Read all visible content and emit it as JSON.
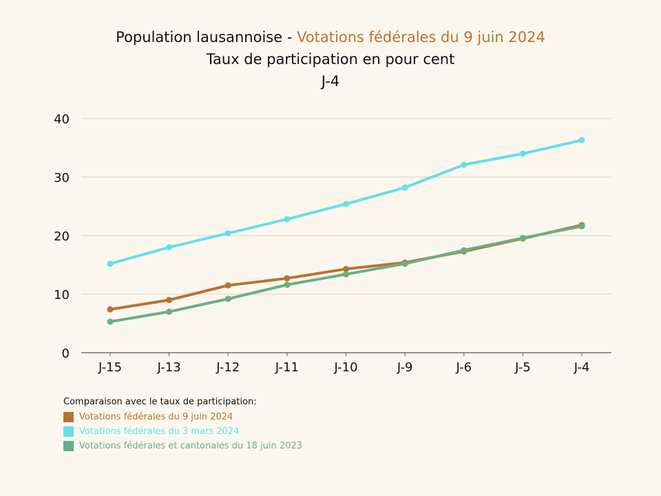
{
  "header": {
    "title_prefix": "Population lausannoise - ",
    "title_highlight": "Votations fédérales du 9 juin 2024",
    "subtitle": "Taux de participation en pour cent",
    "subtitle2": "J-4"
  },
  "legend": {
    "title": "Comparaison avec le taux de participation:"
  },
  "colors": {
    "accent": "#b87333",
    "grid": "#d8d2c6",
    "axis": "#555555"
  },
  "chart_data": {
    "type": "line",
    "title": "Population lausannoise - Votations fédérales du 9 juin 2024",
    "subtitle": "Taux de participation en pour cent",
    "categories": [
      "J-15",
      "J-13",
      "J-12",
      "J-11",
      "J-10",
      "J-9",
      "J-6",
      "J-5",
      "J-4"
    ],
    "ylim": [
      0,
      40
    ],
    "yticks": [
      0,
      10,
      20,
      30,
      40
    ],
    "grid": true,
    "legend_position": "bottom-left",
    "series": [
      {
        "name": "Votations fédérales du 9 juin 2024",
        "color": "#b87333",
        "values": [
          7.4,
          9.0,
          11.5,
          12.7,
          14.3,
          15.4,
          17.3,
          19.5,
          21.8
        ]
      },
      {
        "name": "Votations fédérales du 3 mars 2024",
        "color": "#66e0e6",
        "values": [
          15.2,
          18.0,
          20.4,
          22.8,
          25.4,
          28.2,
          32.1,
          34.0,
          36.3
        ]
      },
      {
        "name": "Votations fédérales et cantonales du 18 juin 2023",
        "color": "#6aaf85",
        "values": [
          5.3,
          7.0,
          9.2,
          11.6,
          13.4,
          15.2,
          17.5,
          19.6,
          21.6
        ]
      }
    ]
  }
}
